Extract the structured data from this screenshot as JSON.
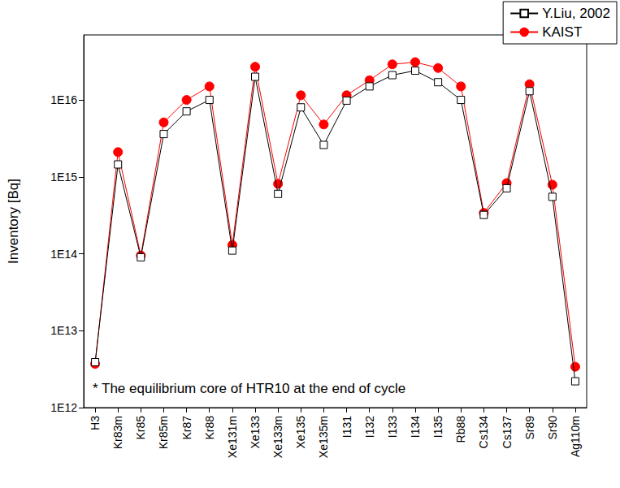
{
  "chart_data": {
    "type": "line",
    "y_label": "Inventory [Bq]",
    "annotation": "* The equilibrium core of HTR10 at the end of cycle",
    "categories": [
      "H3",
      "Kr83m",
      "Kr85",
      "Kr85m",
      "Kr87",
      "Kr88",
      "Xe131m",
      "Xe133",
      "Xe133m",
      "Xe135",
      "Xe135m",
      "I131",
      "I132",
      "I133",
      "I134",
      "I135",
      "Rb88",
      "Cs134",
      "Cs137",
      "Sr89",
      "Sr90",
      "Ag110m"
    ],
    "series": [
      {
        "name": "Y.Liu, 2002",
        "color": "#000000",
        "marker": "square_open",
        "values": [
          3900000000000.0,
          1450000000000000.0,
          90000000000000.0,
          3600000000000000.0,
          7100000000000000.0,
          1e+16,
          110000000000000.0,
          2e+16,
          600000000000000.0,
          8000000000000000.0,
          2600000000000000.0,
          9800000000000000.0,
          1.5e+16,
          2.1e+16,
          2.4e+16,
          1.7e+16,
          1e+16,
          320000000000000.0,
          710000000000000.0,
          1.3e+16,
          550000000000000.0,
          2200000000000.0
        ]
      },
      {
        "name": "KAIST",
        "color": "#ff0000",
        "marker": "circle",
        "values": [
          3700000000000.0,
          2100000000000000.0,
          95000000000000.0,
          5100000000000000.0,
          1e+16,
          1.5e+16,
          130000000000000.0,
          2.7e+16,
          810000000000000.0,
          1.15e+16,
          4800000000000000.0,
          1.15e+16,
          1.8e+16,
          2.9e+16,
          3.1e+16,
          2.6e+16,
          1.5e+16,
          340000000000000.0,
          830000000000000.0,
          1.6e+16,
          790000000000000.0,
          3400000000000.0
        ]
      }
    ],
    "log": "y",
    "ylim": [
      1000000000000.0,
      7e+16
    ],
    "yticks": [
      {
        "value": 1000000000000.0,
        "label": "1E12"
      },
      {
        "value": 10000000000000.0,
        "label": "1E13"
      },
      {
        "value": 100000000000000.0,
        "label": "1E14"
      },
      {
        "value": 1000000000000000.0,
        "label": "1E15"
      },
      {
        "value": 1e+16,
        "label": "1E16"
      }
    ],
    "grid": false,
    "legend": "top-right"
  }
}
